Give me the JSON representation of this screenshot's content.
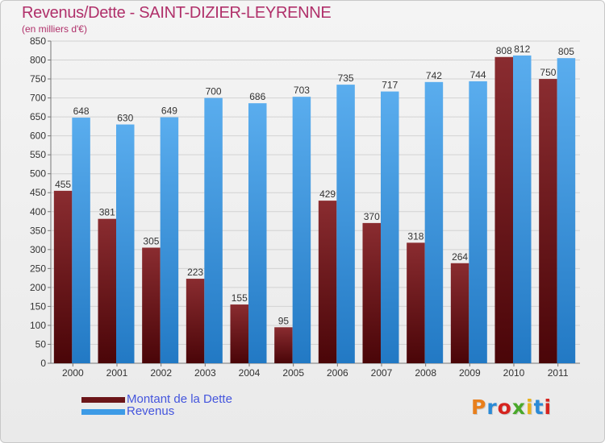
{
  "title": "Revenus/Dette - SAINT-DIZIER-LEYRENNE",
  "subtitle": "(en milliers d'€)",
  "legend": [
    {
      "label": "Montant de la Dette",
      "color": "#6b1518"
    },
    {
      "label": "Revenus",
      "color": "#3d9be6"
    }
  ],
  "logo": {
    "text": "Proxiti",
    "colors": [
      "#e87f1c",
      "#2a8ad6",
      "#d6241f",
      "#4aa82a",
      "#e8b11c",
      "#2a8ad6",
      "#d6241f"
    ]
  },
  "chart_data": {
    "type": "bar",
    "categories": [
      "2000",
      "2001",
      "2002",
      "2003",
      "2004",
      "2005",
      "2006",
      "2007",
      "2008",
      "2009",
      "2010",
      "2011"
    ],
    "series": [
      {
        "name": "Montant de la Dette",
        "values": [
          455,
          381,
          305,
          223,
          155,
          95,
          429,
          370,
          318,
          264,
          808,
          750
        ],
        "color": "#6b1518"
      },
      {
        "name": "Revenus",
        "values": [
          648,
          630,
          649,
          700,
          686,
          703,
          735,
          717,
          742,
          744,
          812,
          805
        ],
        "color": "#3d9be6"
      }
    ],
    "ylim": [
      0,
      850
    ],
    "ytick_step": 50,
    "grid": true,
    "legend_position": "bottom-left"
  }
}
